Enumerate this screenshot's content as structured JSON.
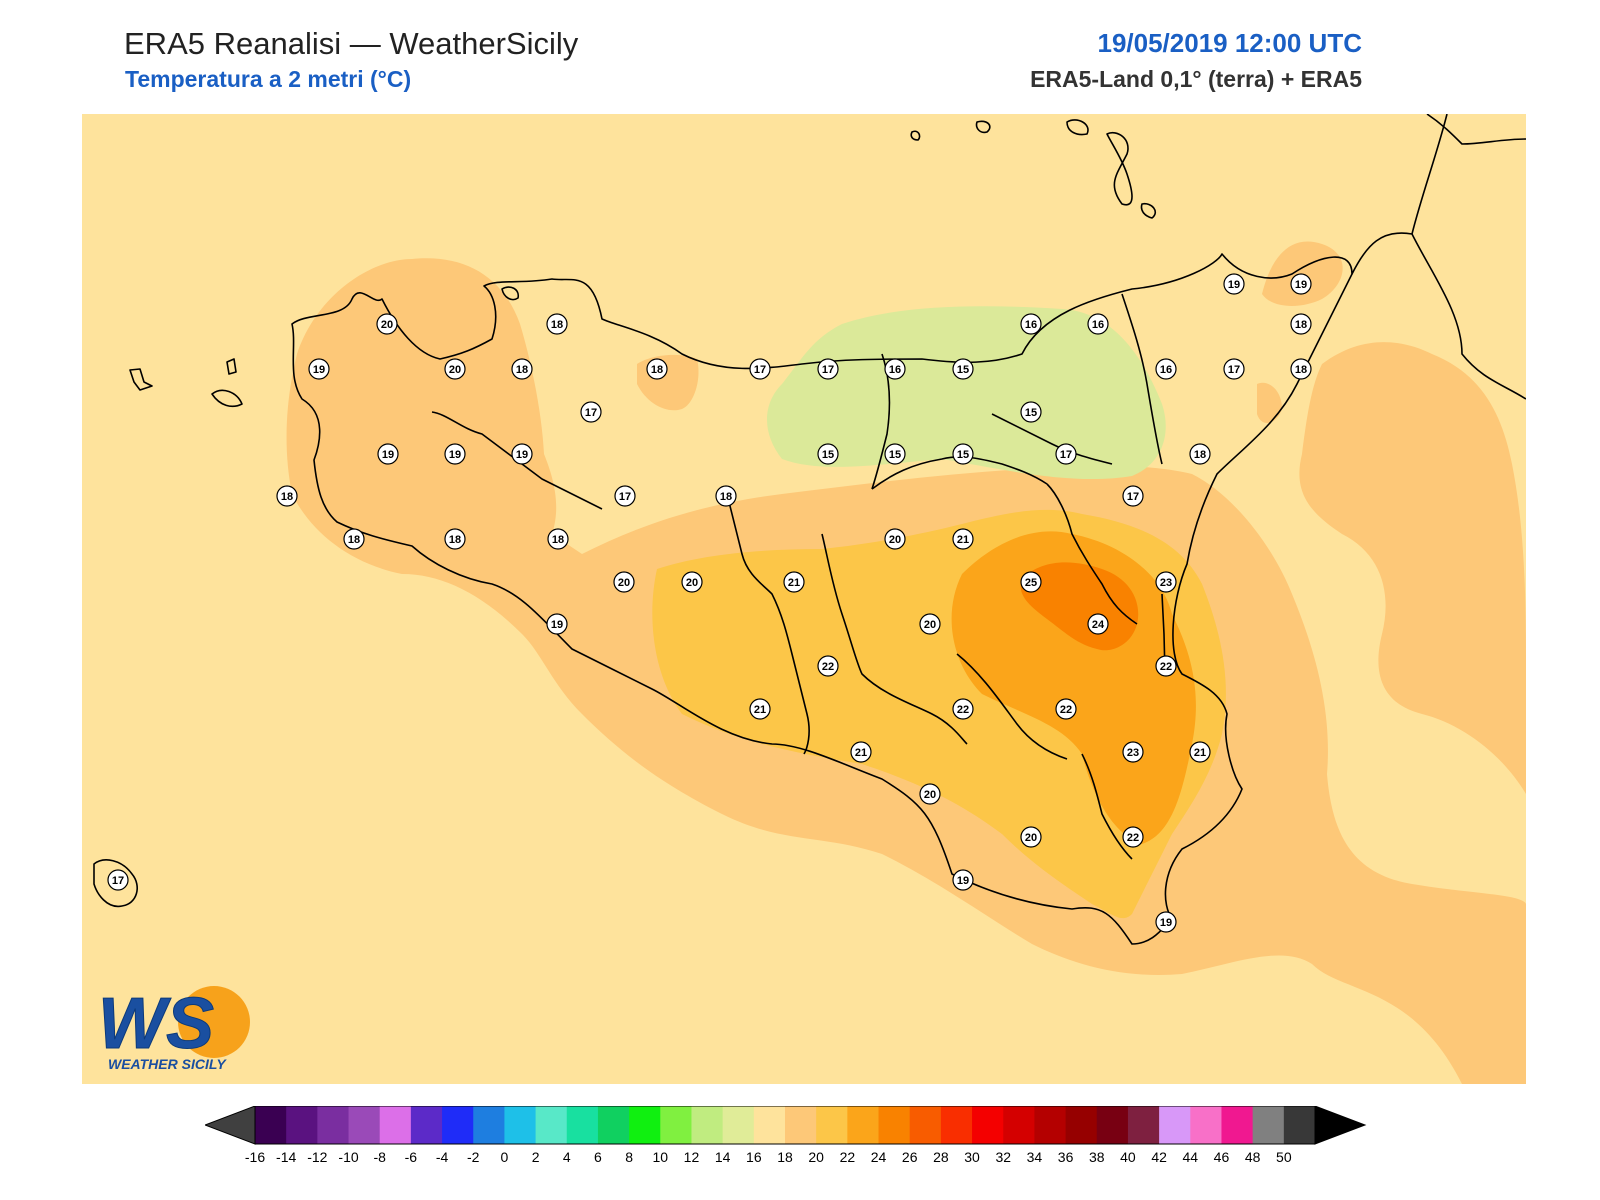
{
  "header": {
    "title": "ERA5 Reanalisi — WeatherSicily",
    "subtitle": "Temperatura a 2 metri (°C)",
    "datetime": "19/05/2019 12:00 UTC",
    "source": "ERA5-Land 0,1° (terra) + ERA5"
  },
  "logo": {
    "text": "WEATHER SICILY",
    "letters": "WS"
  },
  "colors": {
    "land_line": "#000000",
    "base": "#fee39c",
    "t18": "#fdc878",
    "t20": "#fcc648",
    "t22": "#fba51a",
    "t24": "#f98200",
    "t14": "#dbe999",
    "accent_title": "#1a5fc4"
  },
  "colorbar": {
    "ticks": [
      "-16",
      "-14",
      "-12",
      "-10",
      "-8",
      "-6",
      "-4",
      "-2",
      "0",
      "2",
      "4",
      "6",
      "8",
      "10",
      "12",
      "14",
      "16",
      "18",
      "20",
      "22",
      "24",
      "26",
      "28",
      "30",
      "32",
      "34",
      "36",
      "38",
      "40",
      "42",
      "44",
      "46",
      "48",
      "50"
    ],
    "colors": [
      "#3a0052",
      "#5a1280",
      "#7a2ea0",
      "#9a4ab8",
      "#dc6fe8",
      "#5c2ac8",
      "#1f2cf8",
      "#1e7ee0",
      "#1ec0e8",
      "#58e8c8",
      "#18e0a0",
      "#10d060",
      "#10f010",
      "#80f040",
      "#c0ec80",
      "#e0ec98",
      "#fee39c",
      "#fdc878",
      "#fcc648",
      "#fba51a",
      "#f98200",
      "#f85c00",
      "#f92e00",
      "#f40000",
      "#d40000",
      "#b40000",
      "#960000",
      "#780012",
      "#7e2040",
      "#d898f8",
      "#f870c8",
      "#f01890",
      "#808080",
      "#383838"
    ],
    "under_color": "#404040",
    "over_color": "#000000"
  },
  "stations": [
    {
      "v": "20"
    },
    {
      "v": "18"
    },
    {
      "v": "19"
    },
    {
      "v": "20"
    },
    {
      "v": "18"
    },
    {
      "v": "18"
    },
    {
      "v": "17"
    },
    {
      "v": "17"
    },
    {
      "v": "16"
    },
    {
      "v": "16"
    },
    {
      "v": "15"
    },
    {
      "v": "16"
    },
    {
      "v": "16"
    },
    {
      "v": "17"
    },
    {
      "v": "18"
    },
    {
      "v": "19"
    },
    {
      "v": "19"
    },
    {
      "v": "18"
    },
    {
      "v": "19"
    },
    {
      "v": "19"
    },
    {
      "v": "19"
    },
    {
      "v": "17"
    },
    {
      "v": "15"
    },
    {
      "v": "15"
    },
    {
      "v": "15"
    },
    {
      "v": "15"
    },
    {
      "v": "17"
    },
    {
      "v": "18"
    },
    {
      "v": "18"
    },
    {
      "v": "17"
    },
    {
      "v": "18"
    },
    {
      "v": "17"
    },
    {
      "v": "18"
    },
    {
      "v": "18"
    },
    {
      "v": "18"
    },
    {
      "v": "20"
    },
    {
      "v": "21"
    },
    {
      "v": "20"
    },
    {
      "v": "20"
    },
    {
      "v": "21"
    },
    {
      "v": "25"
    },
    {
      "v": "23"
    },
    {
      "v": "19"
    },
    {
      "v": "20"
    },
    {
      "v": "24"
    },
    {
      "v": "22"
    },
    {
      "v": "22"
    },
    {
      "v": "21"
    },
    {
      "v": "22"
    },
    {
      "v": "22"
    },
    {
      "v": "21"
    },
    {
      "v": "23"
    },
    {
      "v": "21"
    },
    {
      "v": "20"
    },
    {
      "v": "20"
    },
    {
      "v": "22"
    },
    {
      "v": "19"
    },
    {
      "v": "19"
    },
    {
      "v": "17"
    }
  ]
}
